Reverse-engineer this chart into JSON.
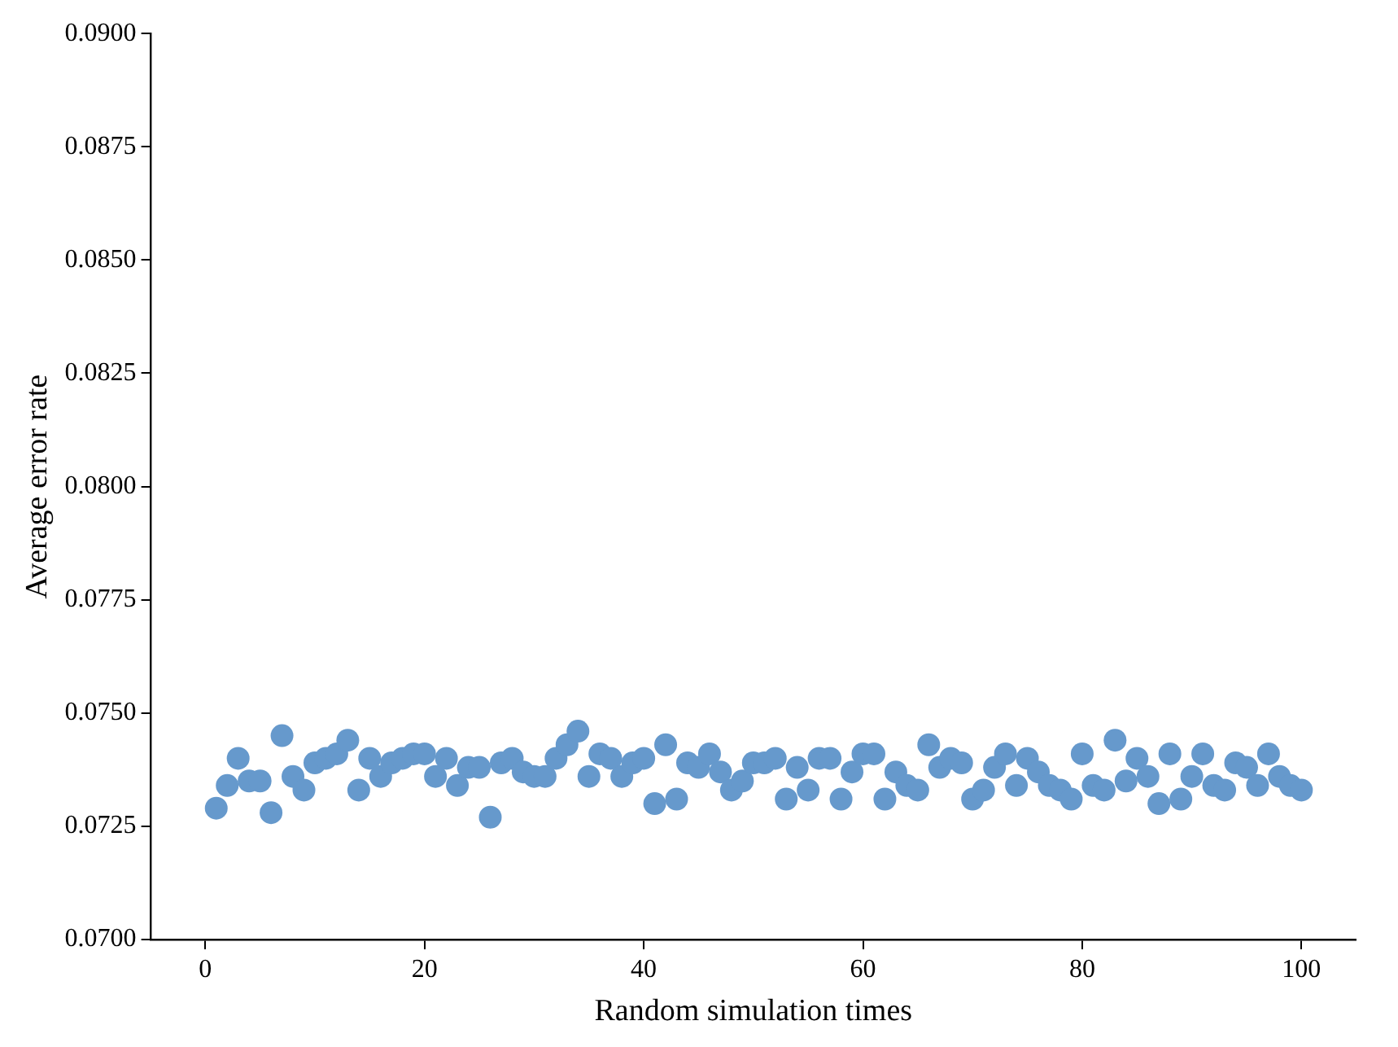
{
  "chart_data": {
    "type": "scatter",
    "xlabel": "Random simulation times",
    "ylabel": "Average error rate",
    "x": [
      1,
      2,
      3,
      4,
      5,
      6,
      7,
      8,
      9,
      10,
      11,
      12,
      13,
      14,
      15,
      16,
      17,
      18,
      19,
      20,
      21,
      22,
      23,
      24,
      25,
      26,
      27,
      28,
      29,
      30,
      31,
      32,
      33,
      34,
      35,
      36,
      37,
      38,
      39,
      40,
      41,
      42,
      43,
      44,
      45,
      46,
      47,
      48,
      49,
      50,
      51,
      52,
      53,
      54,
      55,
      56,
      57,
      58,
      59,
      60,
      61,
      62,
      63,
      64,
      65,
      66,
      67,
      68,
      69,
      70,
      71,
      72,
      73,
      74,
      75,
      76,
      77,
      78,
      79,
      80,
      81,
      82,
      83,
      84,
      85,
      86,
      87,
      88,
      89,
      90,
      91,
      92,
      93,
      94,
      95,
      96,
      97,
      98,
      99,
      100
    ],
    "series": [
      {
        "color": "#6699cc",
        "values": [
          0.0729,
          0.0734,
          0.074,
          0.0735,
          0.0735,
          0.0728,
          0.0745,
          0.0736,
          0.0733,
          0.0739,
          0.074,
          0.0741,
          0.0744,
          0.0733,
          0.074,
          0.0736,
          0.0739,
          0.074,
          0.0741,
          0.0741,
          0.0736,
          0.074,
          0.0734,
          0.0738,
          0.0738,
          0.0727,
          0.0739,
          0.074,
          0.0737,
          0.0736,
          0.0736,
          0.074,
          0.0743,
          0.0746,
          0.0736,
          0.0741,
          0.074,
          0.0736,
          0.0739,
          0.074,
          0.073,
          0.0743,
          0.0731,
          0.0739,
          0.0738,
          0.0741,
          0.0737,
          0.0733,
          0.0735,
          0.0739,
          0.0739,
          0.074,
          0.0731,
          0.0738,
          0.0733,
          0.074,
          0.074,
          0.0731,
          0.0737,
          0.0741,
          0.0741,
          0.0731,
          0.0737,
          0.0734,
          0.0733,
          0.0743,
          0.0738,
          0.074,
          0.0739,
          0.0731,
          0.0733,
          0.0738,
          0.0741,
          0.0734,
          0.074,
          0.0737,
          0.0734,
          0.0733,
          0.0731,
          0.0741,
          0.0734,
          0.0733,
          0.0744,
          0.0735,
          0.074,
          0.0736,
          0.073,
          0.0741,
          0.0731,
          0.0736,
          0.0741,
          0.0734,
          0.0733,
          0.0739,
          0.0738,
          0.0734,
          0.0741,
          0.0736,
          0.0734,
          0.0733
        ]
      }
    ],
    "xlim": [
      -4.95,
      104.95
    ],
    "xticks": [
      0,
      20,
      40,
      60,
      80,
      100
    ],
    "ylim": [
      0.07,
      0.09
    ],
    "yticks": [
      {
        "value": 0.07,
        "label": "0.0700"
      },
      {
        "value": 0.0725,
        "label": "0.0725"
      },
      {
        "value": 0.075,
        "label": "0.0750"
      },
      {
        "value": 0.0775,
        "label": "0.0775"
      },
      {
        "value": 0.08,
        "label": "0.0800"
      },
      {
        "value": 0.0825,
        "label": "0.0825"
      },
      {
        "value": 0.085,
        "label": "0.0850"
      },
      {
        "value": 0.0875,
        "label": "0.0875"
      },
      {
        "value": 0.09,
        "label": "0.0900"
      }
    ],
    "marker": "circle",
    "grid": false,
    "legend": false
  }
}
